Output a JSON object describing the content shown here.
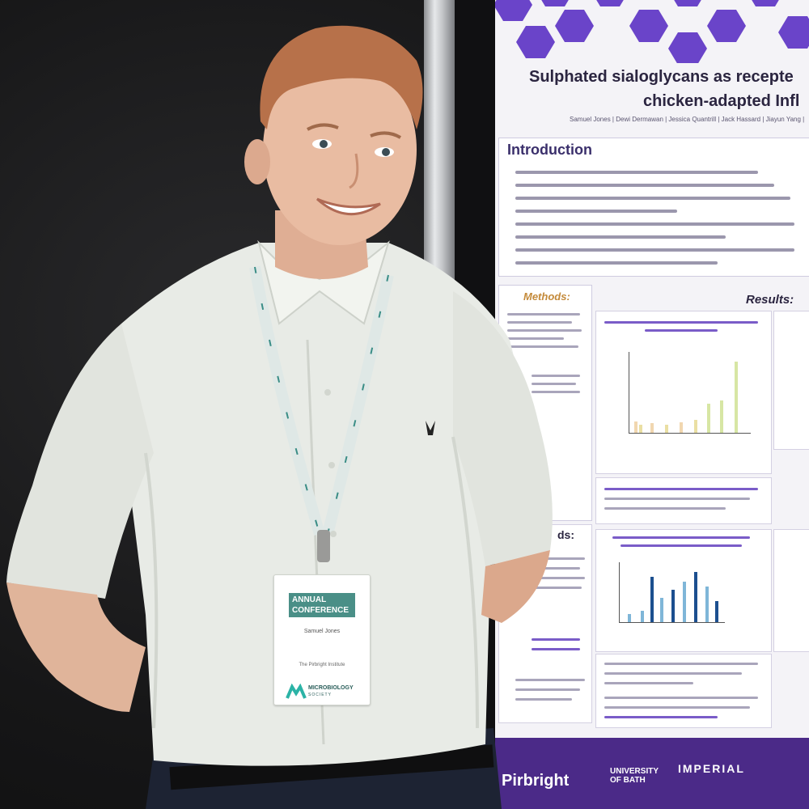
{
  "poster": {
    "title_line1": "Sulphated sialoglycans as recepte",
    "title_line2": "chicken-adapted Infl",
    "authors": "Samuel Jones | Dewi Dermawan | Jessica Quantrill | Jack Hassard | Jiayun Yang |",
    "intro_heading": "Introduction",
    "methods_heading": "Methods:",
    "results_heading": "Results:",
    "methods2_heading": "ds:",
    "footer_logos": [
      "Pirbright",
      "UNIVERSITY OF BATH",
      "IMPERIAL"
    ]
  },
  "badge": {
    "event_line1": "ANNUAL",
    "event_line2": "CONFERENCE",
    "name": "Samuel Jones",
    "affiliation": "The Pirbright Institute",
    "org_line1": "MICROBIOLOGY",
    "org_line2": "SOCIETY"
  },
  "colors": {
    "poster_purple": "#4b2a88",
    "hex_purple": "#6a44c9",
    "shirt": "#e8ebe6",
    "lanyard": "#dfe8e6",
    "badge_teal": "#4a8f87"
  }
}
